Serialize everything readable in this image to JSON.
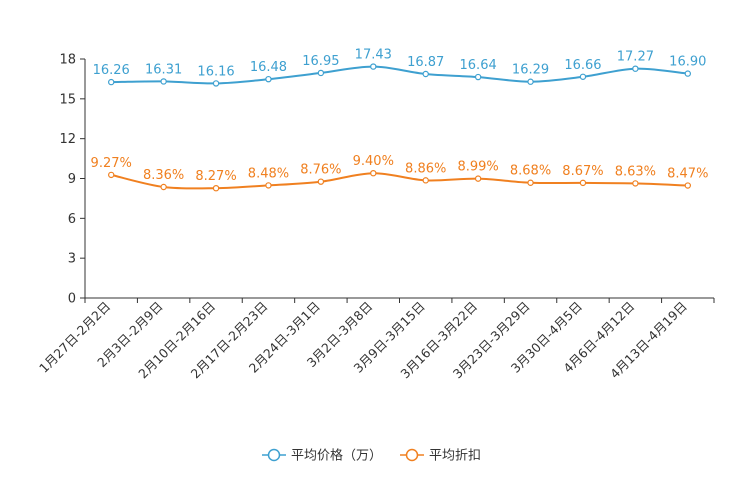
{
  "chart_data": {
    "type": "line",
    "title": "",
    "xlabel": "",
    "ylabel": "",
    "ylim": [
      0,
      18
    ],
    "yticks": [
      0,
      3,
      6,
      9,
      12,
      15,
      18
    ],
    "categories": [
      "1月27日-2月2日",
      "2月3日-2月9日",
      "2月10日-2月16日",
      "2月17日-2月23日",
      "2月24日-3月1日",
      "3月2日-3月8日",
      "3月9日-3月15日",
      "3月16日-3月22日",
      "3月23日-3月29日",
      "3月30日-4月5日",
      "4月6日-4月12日",
      "4月13日-4月19日"
    ],
    "series": [
      {
        "name": "平均价格（万）",
        "color": "#3ea0d0",
        "values": [
          16.26,
          16.31,
          16.16,
          16.48,
          16.95,
          17.43,
          16.87,
          16.64,
          16.29,
          16.66,
          17.27,
          16.9
        ],
        "labels": [
          "16.26",
          "16.31",
          "16.16",
          "16.48",
          "16.95",
          "17.43",
          "16.87",
          "16.64",
          "16.29",
          "16.66",
          "17.27",
          "16.90"
        ]
      },
      {
        "name": "平均折扣",
        "color": "#f08020",
        "values": [
          9.27,
          8.36,
          8.27,
          8.48,
          8.76,
          9.4,
          8.86,
          8.99,
          8.68,
          8.67,
          8.63,
          8.47
        ],
        "labels": [
          "9.27%",
          "8.36%",
          "8.27%",
          "8.48%",
          "8.76%",
          "9.40%",
          "8.86%",
          "8.99%",
          "8.68%",
          "8.67%",
          "8.63%",
          "8.47%"
        ]
      }
    ],
    "legend_position": "bottom-center"
  }
}
